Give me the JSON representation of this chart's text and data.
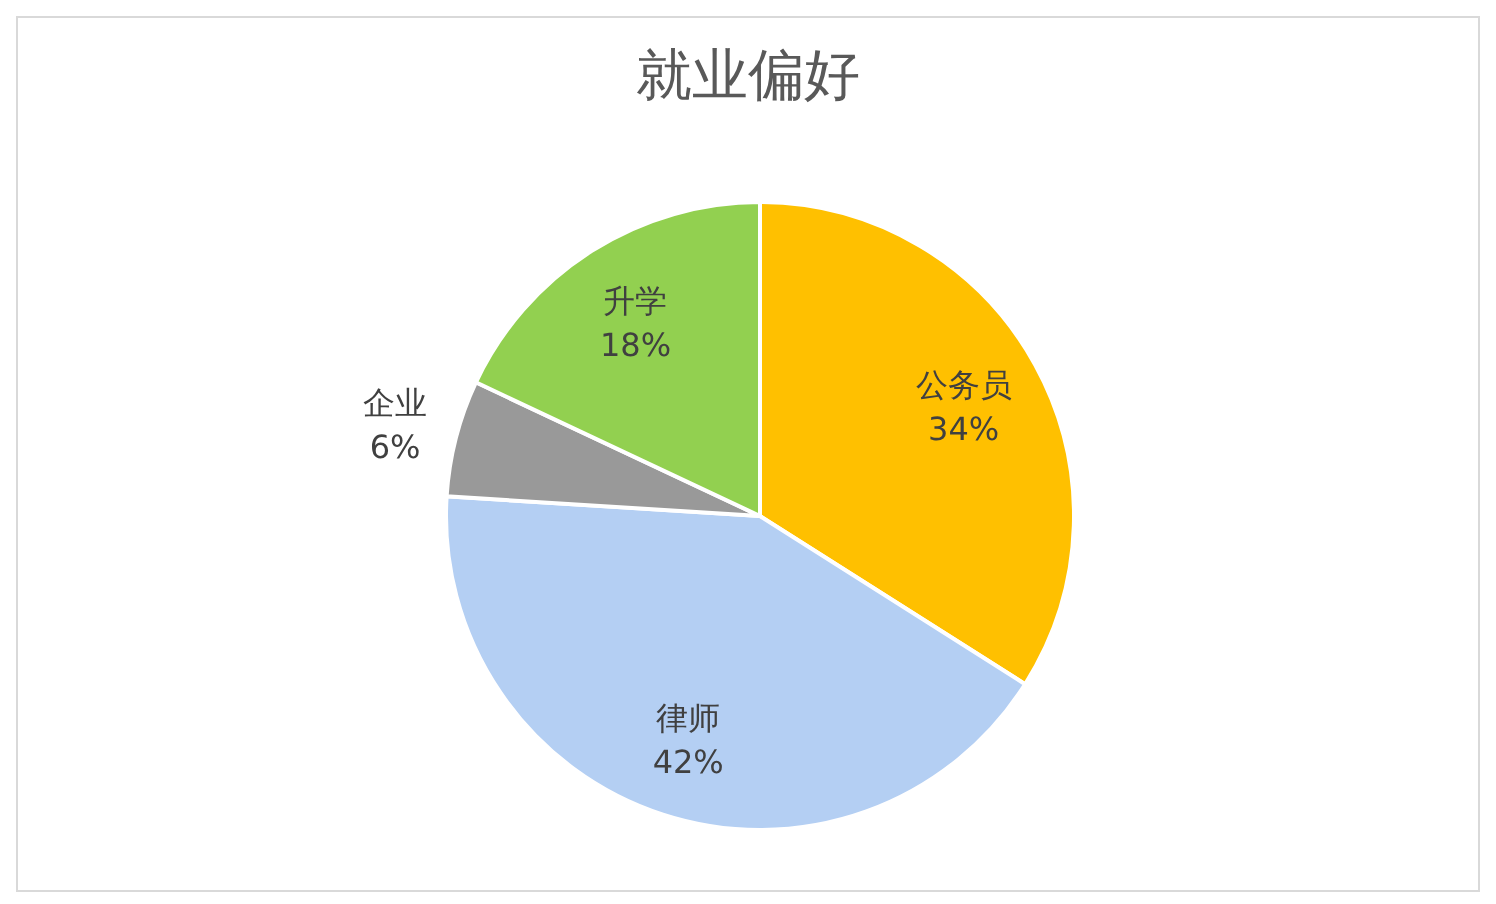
{
  "chart_data": {
    "type": "pie",
    "title": "就业偏好",
    "categories": [
      "公务员",
      "律师",
      "企业",
      "升学"
    ],
    "values": [
      34,
      42,
      6,
      18
    ],
    "value_labels": [
      "34%",
      "42%",
      "6%",
      "18%"
    ],
    "colors": [
      "#ffc000",
      "#b4cff3",
      "#999999",
      "#92d050"
    ]
  }
}
